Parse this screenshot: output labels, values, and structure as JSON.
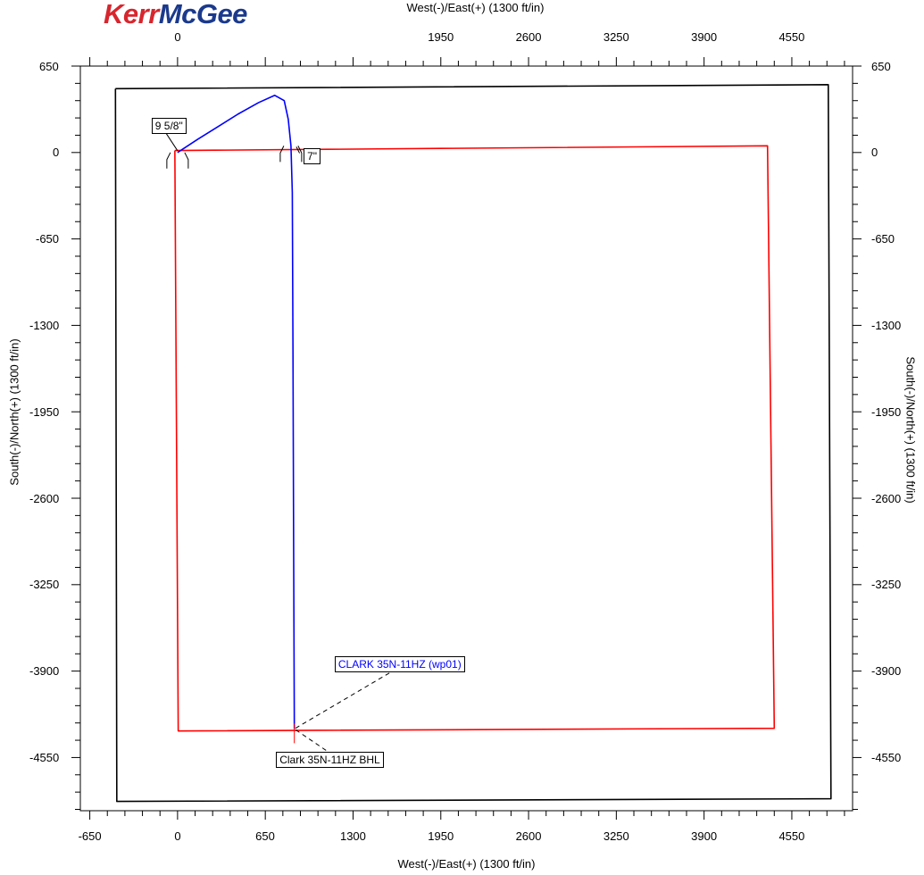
{
  "logo": {
    "part1": "Kerr",
    "part2": "McGee",
    "color1": "#d7262e",
    "color2": "#1b3a8c"
  },
  "chart_data": {
    "type": "line",
    "xlabel": "West(-)/East(+) (1300 ft/in)",
    "ylabel": "South(-)/North(+) (1300 ft/in)",
    "xlim": [
      -720,
      5000
    ],
    "ylim": [
      -4950,
      650
    ],
    "x_ticks_bottom": [
      -650,
      0,
      650,
      1300,
      1950,
      2600,
      3250,
      3900,
      4550
    ],
    "x_ticks_top": [
      0,
      1950,
      2600,
      3250,
      3900,
      4550
    ],
    "y_ticks": [
      650,
      0,
      -650,
      -1300,
      -1950,
      -2600,
      -3250,
      -3900,
      -4550
    ],
    "series": [
      {
        "color": "#000000",
        "x": [
          -460,
          4820,
          4840,
          -450,
          -460
        ],
        "y": [
          480,
          510,
          -4860,
          -4880,
          480
        ]
      },
      {
        "color": "#ff0000",
        "x": [
          -20,
          4370,
          4420,
          5,
          -20
        ],
        "y": [
          15,
          50,
          -4330,
          -4350,
          15
        ]
      },
      {
        "color": "#0000ff",
        "x": [
          0,
          150,
          300,
          450,
          600,
          720,
          790,
          820,
          840,
          850,
          855,
          860,
          865
        ],
        "y": [
          0,
          100,
          195,
          290,
          375,
          430,
          390,
          250,
          50,
          -300,
          -1500,
          -3000,
          -4335
        ]
      }
    ],
    "annotations": [
      {
        "text": "9 5/8\"",
        "x": -90,
        "y": 220,
        "color": "#000000"
      },
      {
        "text": "7\"",
        "x": 970,
        "y": -5,
        "color": "#000000"
      },
      {
        "text": "CLARK 35N-11HZ (wp01)",
        "x": 1620,
        "y": -3830,
        "color": "#0000ff"
      },
      {
        "text": "Clark 35N-11HZ BHL",
        "x": 1100,
        "y": -4550,
        "color": "#000000"
      }
    ]
  }
}
